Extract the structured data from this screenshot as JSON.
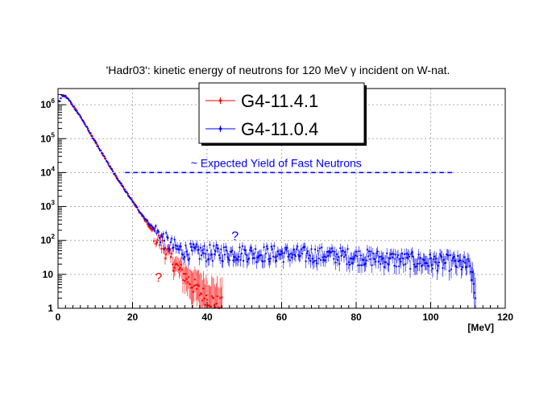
{
  "chart_data": {
    "type": "scatter",
    "title": "'Hadr03': kinetic energy of neutrons for 120 MeV γ incident on W-nat.",
    "xlabel": "[MeV]",
    "ylabel": "",
    "xlim": [
      0,
      120
    ],
    "ylim": [
      1,
      3000000
    ],
    "y_scale": "log",
    "grid": true,
    "legend_position": "top-center",
    "x_ticks": [
      0,
      20,
      40,
      60,
      80,
      100,
      120
    ],
    "x_tick_labels": [
      "0",
      "20",
      "40",
      "60",
      "80",
      "100",
      "120"
    ],
    "y_ticks": [
      1,
      10,
      100,
      1000,
      10000,
      100000,
      1000000
    ],
    "y_tick_labels": [
      {
        "base": "1",
        "exp": ""
      },
      {
        "base": "10",
        "exp": ""
      },
      {
        "base": "10",
        "exp": "2"
      },
      {
        "base": "10",
        "exp": "3"
      },
      {
        "base": "10",
        "exp": "4"
      },
      {
        "base": "10",
        "exp": "5"
      },
      {
        "base": "10",
        "exp": "6"
      }
    ],
    "series": [
      {
        "name": "G4-11.4.1",
        "color": "#ff0000",
        "x": [
          0.5,
          1,
          1.5,
          2,
          3,
          4,
          5,
          6,
          8,
          10,
          12,
          14,
          16,
          18,
          20,
          22,
          24,
          26,
          28,
          30,
          32,
          34,
          36,
          38,
          40,
          42,
          44
        ],
        "y": [
          1300000,
          1800000,
          1850000,
          1750000,
          1350000,
          950000,
          650000,
          450000,
          190000,
          80000,
          34000,
          14500,
          6500,
          3000,
          1400,
          650,
          300,
          140,
          70,
          32,
          16,
          9,
          5,
          3,
          2,
          1.5,
          1.2
        ]
      },
      {
        "name": "G4-11.0.4",
        "color": "#0000ff",
        "x": [
          0.5,
          1,
          1.5,
          2,
          3,
          4,
          5,
          6,
          8,
          10,
          12,
          14,
          16,
          18,
          20,
          22,
          24,
          26,
          28,
          30,
          32,
          34,
          36,
          40,
          45,
          50,
          55,
          60,
          65,
          70,
          75,
          80,
          85,
          90,
          95,
          100,
          105,
          108,
          110,
          111,
          112
        ],
        "y": [
          1300000,
          1800000,
          1850000,
          1750000,
          1350000,
          950000,
          650000,
          450000,
          190000,
          80000,
          34000,
          14500,
          6500,
          3000,
          1400,
          700,
          360,
          200,
          120,
          75,
          55,
          48,
          45,
          42,
          42,
          42,
          40,
          40,
          38,
          37,
          35,
          33,
          30,
          27,
          25,
          23,
          22,
          20,
          18,
          10,
          2
        ]
      }
    ],
    "annotations": [
      {
        "text": "~ Expected Yield of Fast Neutrons",
        "color": "#0000ff",
        "line_y": 10000,
        "line_x": [
          18,
          106
        ],
        "style": "dashed"
      },
      {
        "text": "?",
        "color": "#0000ff",
        "x": 47.5,
        "y": 100
      },
      {
        "text": "?",
        "color": "#ff0000",
        "x": 27,
        "y": 6
      }
    ]
  }
}
